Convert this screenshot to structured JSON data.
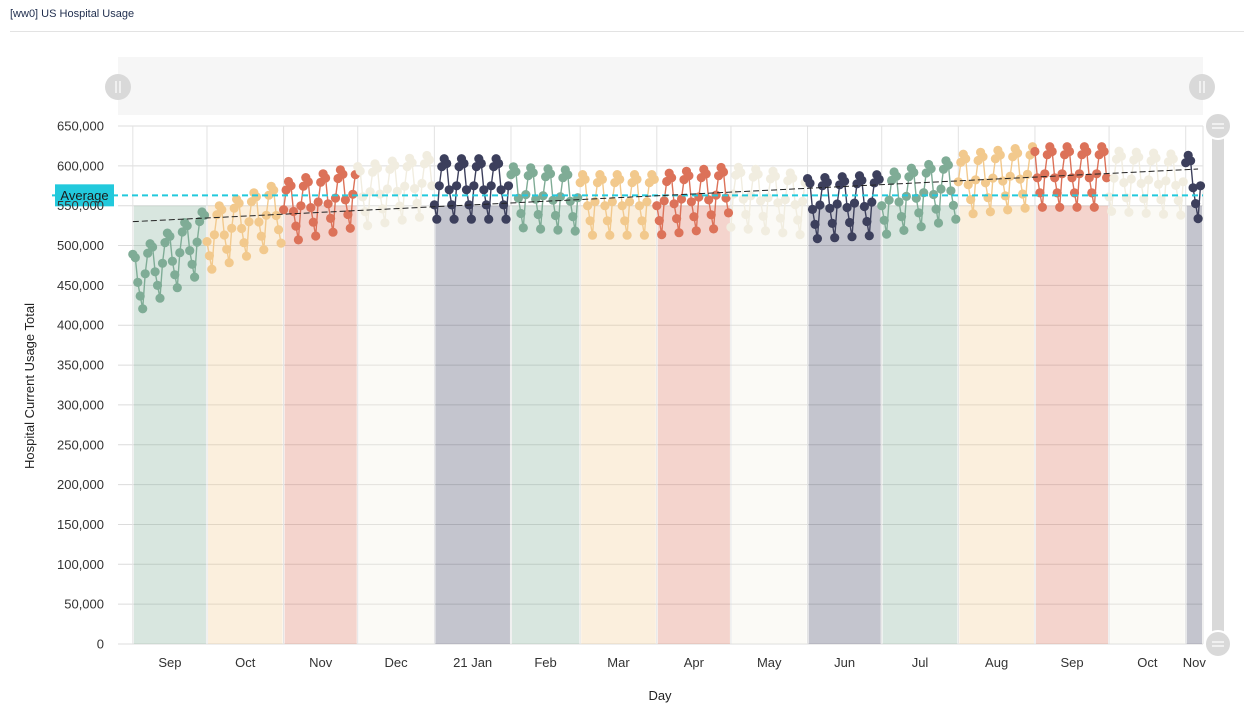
{
  "window": {
    "title": "[ww0] US Hospital Usage"
  },
  "colors": {
    "green": "#7fac96",
    "tan": "#f2c98d",
    "red": "#dc7259",
    "cream": "#f1ede0",
    "navy": "#3c3f5c",
    "average": "#22c9dc",
    "trend": "#222222"
  },
  "controls": {
    "x_scroll_handle_left": "drag-handle-icon",
    "x_scroll_handle_right": "drag-handle-icon",
    "y_scroll_handle_top": "drag-handle-icon",
    "y_scroll_handle_bottom": "drag-handle-icon"
  },
  "chart_data": {
    "type": "line",
    "title": "",
    "xlabel": "Day",
    "ylabel": "Hospital Current Usage Total",
    "ylim": [
      0,
      650000
    ],
    "yticks": [
      "0",
      "50,000",
      "100,000",
      "150,000",
      "200,000",
      "250,000",
      "300,000",
      "350,000",
      "400,000",
      "450,000",
      "500,000",
      "550,000",
      "600,000",
      "650,000"
    ],
    "xlim": [
      "2020-08-26",
      "2021-11-08"
    ],
    "grid": true,
    "months": [
      {
        "label": "Sep",
        "start": "2020-09-01",
        "end": "2020-10-01",
        "color": "green",
        "y_start": 455000,
        "y_end": 510000
      },
      {
        "label": "Oct",
        "start": "2020-10-01",
        "end": "2020-11-01",
        "color": "tan",
        "y_start": 510000,
        "y_end": 545000
      },
      {
        "label": "Nov",
        "start": "2020-11-01",
        "end": "2020-12-01",
        "color": "red",
        "y_start": 545000,
        "y_end": 565000
      },
      {
        "label": "Dec",
        "start": "2020-12-01",
        "end": "2021-01-01",
        "color": "cream",
        "y_start": 565000,
        "y_end": 580000
      },
      {
        "label": "21 Jan",
        "start": "2021-01-01",
        "end": "2021-02-01",
        "color": "navy",
        "y_start": 575000,
        "y_end": 575000
      },
      {
        "label": "Feb",
        "start": "2021-02-01",
        "end": "2021-03-01",
        "color": "green",
        "y_start": 565000,
        "y_end": 560000
      },
      {
        "label": "Mar",
        "start": "2021-03-01",
        "end": "2021-04-01",
        "color": "tan",
        "y_start": 555000,
        "y_end": 555000
      },
      {
        "label": "Apr",
        "start": "2021-04-01",
        "end": "2021-05-01",
        "color": "red",
        "y_start": 555000,
        "y_end": 565000
      },
      {
        "label": "May",
        "start": "2021-05-01",
        "end": "2021-06-01",
        "color": "cream",
        "y_start": 565000,
        "y_end": 555000
      },
      {
        "label": "Jun",
        "start": "2021-06-01",
        "end": "2021-07-01",
        "color": "navy",
        "y_start": 550000,
        "y_end": 555000
      },
      {
        "label": "Jul",
        "start": "2021-07-01",
        "end": "2021-08-01",
        "color": "green",
        "y_start": 555000,
        "y_end": 575000
      },
      {
        "label": "Aug",
        "start": "2021-08-01",
        "end": "2021-09-01",
        "color": "tan",
        "y_start": 580000,
        "y_end": 590000
      },
      {
        "label": "Sep",
        "start": "2021-09-01",
        "end": "2021-10-01",
        "color": "red",
        "y_start": 590000,
        "y_end": 590000
      },
      {
        "label": "Oct",
        "start": "2021-10-01",
        "end": "2021-11-01",
        "color": "cream",
        "y_start": 585000,
        "y_end": 580000
      },
      {
        "label": "Nov",
        "start": "2021-11-01",
        "end": "2021-11-08",
        "color": "navy",
        "y_start": 580000,
        "y_end": 575000
      }
    ],
    "weekly_pattern": [
      0,
      24000,
      34000,
      28000,
      -5000,
      -24000,
      -42000
    ],
    "month_band_top": 550000,
    "average": {
      "label": "Average",
      "value": 563000
    },
    "trend": {
      "start": "2020-09-01",
      "start_value": 530000,
      "end": "2021-11-06",
      "end_value": 596000
    }
  }
}
